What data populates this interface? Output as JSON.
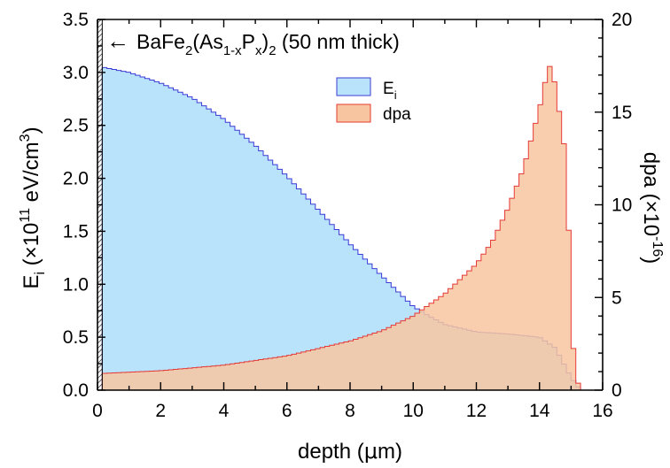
{
  "chart_data": {
    "type": "area",
    "x_axis": {
      "label_main": "depth (",
      "label_mu": "μ",
      "label_unit": "m)",
      "range": [
        0,
        16
      ],
      "ticks": [
        0,
        2,
        4,
        6,
        8,
        10,
        12,
        14,
        16
      ]
    },
    "y_left": {
      "label_base": "E",
      "label_sub": "i",
      "label_mid": " (×10",
      "label_exp": "11",
      "label_unit": " eV/cm",
      "label_cube": "3",
      "label_close": ")",
      "range": [
        0,
        3.5
      ],
      "ticks": [
        "0.0",
        "0.5",
        "1.0",
        "1.5",
        "2.0",
        "2.5",
        "3.0",
        "3.5"
      ]
    },
    "y_right": {
      "label_main": "dpa (×10",
      "label_exp": "-16",
      "label_close": ")",
      "range": [
        0,
        20
      ],
      "ticks": [
        "0",
        "5",
        "10",
        "15",
        "20"
      ]
    },
    "annotation": {
      "arrow": "←",
      "t1": "BaFe",
      "s1": "2",
      "t2": "(As",
      "s2": "1-x",
      "t3": "P",
      "s3": "x",
      "t4": ")",
      "s4": "2",
      "t5": " (50 nm thick)"
    },
    "legend": [
      {
        "label_base": "E",
        "label_sub": "i",
        "color": "#b9e3fb",
        "stroke": "#3b3bd6"
      },
      {
        "label_base": "dpa",
        "label_sub": "",
        "color": "#f7c6a0",
        "stroke": "#e53935"
      }
    ],
    "film_thickness_um": 0.05,
    "series": [
      {
        "name_key": "Ei",
        "axis": "left",
        "x": [
          0.15,
          1,
          2,
          3,
          4,
          5,
          6,
          7,
          8,
          9,
          10,
          10.5,
          11,
          12,
          13,
          14,
          14.5,
          15,
          15.3
        ],
        "y": [
          3.05,
          3.0,
          2.9,
          2.76,
          2.56,
          2.31,
          2.02,
          1.7,
          1.38,
          1.08,
          0.79,
          0.7,
          0.62,
          0.55,
          0.53,
          0.5,
          0.4,
          0.12,
          0.0
        ]
      },
      {
        "name_key": "dpa",
        "axis": "right",
        "x": [
          0.15,
          2,
          4,
          6,
          8,
          9,
          10,
          11,
          12,
          12.5,
          13,
          13.5,
          14,
          14.3,
          14.5,
          14.8,
          15,
          15.1,
          15.3
        ],
        "y": [
          0.9,
          1.05,
          1.35,
          1.85,
          2.65,
          3.2,
          4.0,
          5.2,
          6.8,
          8.0,
          9.8,
          12.0,
          15.2,
          17.6,
          16.5,
          13.0,
          6.0,
          1.0,
          0.0
        ]
      }
    ]
  }
}
